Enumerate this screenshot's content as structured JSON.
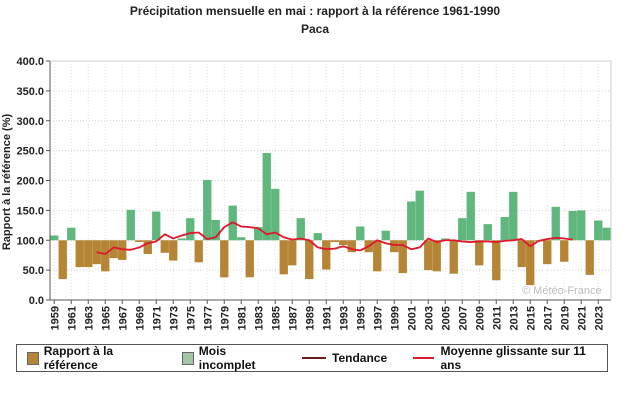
{
  "chart_data": {
    "type": "bar",
    "title": "Précipitation mensuelle en mai : rapport à la référence 1961-1990",
    "subtitle": "Paca",
    "ylabel": "Rapport à la référence (%)",
    "ylim": [
      0,
      400
    ],
    "yticks": [
      "0.0",
      "50.0",
      "100.0",
      "150.0",
      "200.0",
      "250.0",
      "300.0",
      "350.0",
      "400.0"
    ],
    "baseline": 100,
    "grid": true,
    "x": [
      1959,
      1960,
      1961,
      1962,
      1963,
      1964,
      1965,
      1966,
      1967,
      1968,
      1969,
      1970,
      1971,
      1972,
      1973,
      1974,
      1975,
      1976,
      1977,
      1978,
      1979,
      1980,
      1981,
      1982,
      1983,
      1984,
      1985,
      1986,
      1987,
      1988,
      1989,
      1990,
      1991,
      1992,
      1993,
      1994,
      1995,
      1996,
      1997,
      1998,
      1999,
      2000,
      2001,
      2002,
      2003,
      2004,
      2005,
      2006,
      2007,
      2008,
      2009,
      2010,
      2011,
      2012,
      2013,
      2014,
      2015,
      2016,
      2017,
      2018,
      2019,
      2020,
      2021,
      2022,
      2023,
      2024
    ],
    "xticks": [
      "1959",
      "1961",
      "1963",
      "1965",
      "1967",
      "1969",
      "1971",
      "1973",
      "1975",
      "1977",
      "1979",
      "1981",
      "1983",
      "1985",
      "1987",
      "1989",
      "1991",
      "1993",
      "1995",
      "1997",
      "1999",
      "2001",
      "2003",
      "2005",
      "2007",
      "2009",
      "2011",
      "2013",
      "2015",
      "2017",
      "2019",
      "2021",
      "2023"
    ],
    "series": [
      {
        "name": "Rapport à la référence",
        "values": [
          108,
          35,
          121,
          55,
          55,
          60,
          48,
          70,
          67,
          151,
          97,
          77,
          148,
          79,
          66,
          103,
          137,
          63,
          201,
          134,
          38,
          158,
          105,
          38,
          122,
          246,
          186,
          43,
          58,
          137,
          35,
          112,
          51,
          97,
          92,
          80,
          123,
          80,
          48,
          116,
          80,
          45,
          165,
          183,
          50,
          48,
          103,
          44,
          137,
          181,
          58,
          127,
          33,
          139,
          181,
          55,
          25,
          98,
          60,
          156,
          64,
          149,
          150,
          42,
          133,
          121
        ],
        "color_low": "#b58535",
        "color_high": "#5fb77e"
      },
      {
        "name": "Moyenne glissante sur 11 ans",
        "values": [
          null,
          null,
          null,
          null,
          null,
          80,
          77,
          88,
          85,
          84,
          88,
          95,
          98,
          110,
          103,
          108,
          112,
          113,
          102,
          105,
          122,
          130,
          123,
          122,
          120,
          110,
          113,
          105,
          101,
          103,
          100,
          88,
          85,
          86,
          90,
          85,
          83,
          90,
          100,
          95,
          92,
          92,
          85,
          88,
          103,
          97,
          100,
          100,
          98,
          97,
          98,
          98,
          97,
          99,
          100,
          102,
          90,
          99,
          102,
          104,
          103,
          101,
          null,
          null,
          null,
          null
        ],
        "color": "#e0162d"
      }
    ],
    "legend": {
      "placement": "bottom",
      "items": [
        {
          "label": "Rapport à la référence",
          "color": "#b58535",
          "kind": "box"
        },
        {
          "label": "Mois incomplet",
          "color": "#a3c7a3",
          "kind": "box"
        },
        {
          "label": "Tendance",
          "color": "#6b1d1d",
          "kind": "line"
        },
        {
          "label": "Moyenne glissante sur 11 ans",
          "color": "#e0162d",
          "kind": "line"
        }
      ]
    },
    "watermark": "© Météo-France"
  }
}
